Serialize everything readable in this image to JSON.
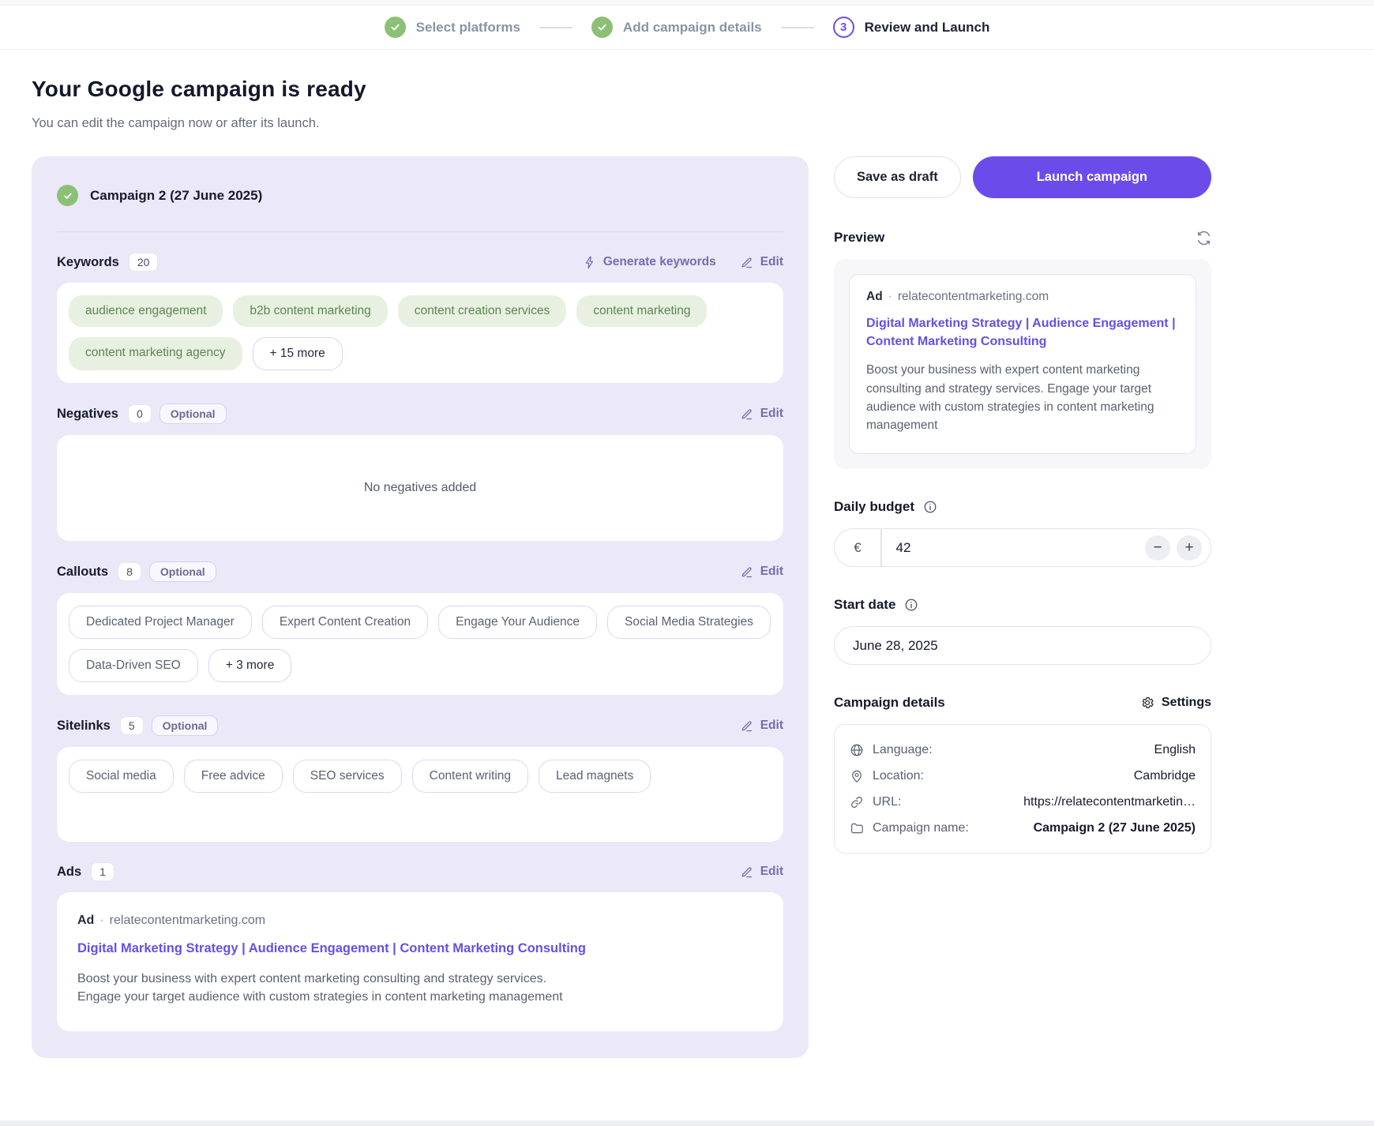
{
  "stepper": {
    "steps": [
      {
        "label": "Select platforms",
        "state": "done"
      },
      {
        "label": "Add campaign details",
        "state": "done"
      },
      {
        "label": "Review and Launch",
        "state": "active",
        "number": "3"
      }
    ]
  },
  "page": {
    "title": "Your Google campaign is ready",
    "subtitle": "You can edit the campaign now or after its launch."
  },
  "panel": {
    "campaign_title": "Campaign 2 (27 June 2025)",
    "keywords": {
      "label": "Keywords",
      "count": "20",
      "generate_label": "Generate keywords",
      "edit_label": "Edit",
      "chips": [
        "audience engagement",
        "b2b content marketing",
        "content creation services",
        "content marketing",
        "content marketing agency"
      ],
      "more_label": "+ 15 more"
    },
    "negatives": {
      "label": "Negatives",
      "count": "0",
      "optional_label": "Optional",
      "edit_label": "Edit",
      "empty_text": "No negatives added"
    },
    "callouts": {
      "label": "Callouts",
      "count": "8",
      "optional_label": "Optional",
      "edit_label": "Edit",
      "chips": [
        "Dedicated Project Manager",
        "Expert Content Creation",
        "Engage Your Audience",
        "Social Media Strategies",
        "Data-Driven SEO"
      ],
      "more_label": "+ 3 more"
    },
    "sitelinks": {
      "label": "Sitelinks",
      "count": "5",
      "optional_label": "Optional",
      "edit_label": "Edit",
      "chips": [
        "Social media",
        "Free advice",
        "SEO services",
        "Content writing",
        "Lead magnets"
      ]
    },
    "ads": {
      "label": "Ads",
      "count": "1",
      "edit_label": "Edit"
    }
  },
  "ad": {
    "tag": "Ad",
    "separator": "·",
    "domain": "relatecontentmarketing.com",
    "headline": "Digital Marketing Strategy | Audience Engagement | Content Marketing Consulting",
    "description_1": "Boost your business with expert content marketing consulting and strategy services.",
    "description_2": "Engage your target audience with custom strategies in content marketing management"
  },
  "actions": {
    "save_draft_label": "Save as draft",
    "launch_label": "Launch campaign"
  },
  "preview": {
    "label": "Preview"
  },
  "budget": {
    "label": "Daily budget",
    "currency": "€",
    "value": "42",
    "minus": "−",
    "plus": "+"
  },
  "start_date": {
    "label": "Start date",
    "value": "June 28, 2025"
  },
  "details": {
    "label": "Campaign details",
    "settings_label": "Settings",
    "rows": [
      {
        "icon": "globe-icon",
        "label": "Language:",
        "value": "English",
        "strong": false
      },
      {
        "icon": "location-pin-icon",
        "label": "Location:",
        "value": "Cambridge",
        "strong": false
      },
      {
        "icon": "link-icon",
        "label": "URL:",
        "value": "https://relatecontentmarketin…",
        "strong": false
      },
      {
        "icon": "folder-icon",
        "label": "Campaign name:",
        "value": "Campaign 2 (27 June 2025)",
        "strong": true
      }
    ]
  },
  "colors": {
    "accent_purple": "#6b4ceb",
    "ad_link_purple": "#6251e9",
    "success_green": "#8cc075",
    "keyword_chip_bg": "#e8f1e1",
    "keyword_chip_text": "#5c8551",
    "panel_background": "#ebe8f8"
  }
}
